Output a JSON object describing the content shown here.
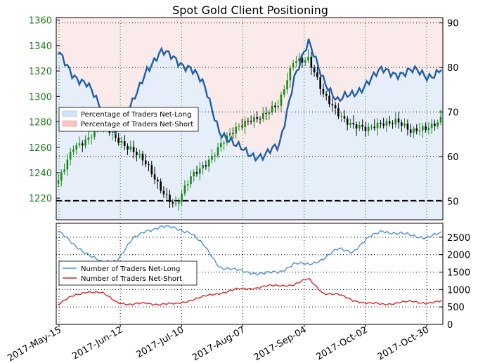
{
  "chart_data": [
    {
      "type": "candlestick+line",
      "title": "Spot Gold Client Positioning",
      "x_ticks": [
        "2017-May-15",
        "2017-Jun-12",
        "2017-Jul-10",
        "2017-Aug-07",
        "2017-Sep-04",
        "2017-Oct-02",
        "2017-Oct-30"
      ],
      "y_left": {
        "ticks": [
          1220,
          1240,
          1260,
          1280,
          1300,
          1320,
          1340,
          1360
        ],
        "range": [
          1203,
          1362
        ],
        "color": "#1a7a1a"
      },
      "y_right": {
        "ticks": [
          50,
          60,
          70,
          80,
          90
        ],
        "range": [
          45.8,
          91.2
        ]
      },
      "reference_line": 1218,
      "legend": {
        "placement": "upper-left",
        "entries": [
          {
            "label": "Percentage of Traders Net-Long",
            "color": "#cfe3f5"
          },
          {
            "label": "Percentage of Traders Net-Short",
            "color": "#f7c6c6"
          }
        ]
      },
      "x": [
        "2017-05-15",
        "2017-05-22",
        "2017-05-29",
        "2017-06-05",
        "2017-06-12",
        "2017-06-19",
        "2017-06-26",
        "2017-07-03",
        "2017-07-10",
        "2017-07-17",
        "2017-07-24",
        "2017-07-31",
        "2017-08-07",
        "2017-08-14",
        "2017-08-21",
        "2017-08-28",
        "2017-09-04",
        "2017-09-11",
        "2017-09-18",
        "2017-09-25",
        "2017-10-02",
        "2017-10-09",
        "2017-10-16",
        "2017-10-23",
        "2017-10-30",
        "2017-11-06",
        "2017-11-10"
      ],
      "gold_close": [
        1232,
        1262,
        1266,
        1278,
        1268,
        1258,
        1245,
        1228,
        1214,
        1235,
        1248,
        1262,
        1272,
        1283,
        1286,
        1292,
        1330,
        1330,
        1300,
        1288,
        1278,
        1272,
        1280,
        1282,
        1270,
        1276,
        1283
      ],
      "pct_net_long": [
        83,
        79,
        76,
        70,
        66,
        71,
        80,
        83,
        82,
        80,
        75,
        66,
        62,
        61,
        60,
        62,
        78,
        85,
        78,
        72,
        74,
        77,
        79,
        79,
        79,
        78,
        80
      ],
      "pct_net_short": [
        17,
        21,
        24,
        30,
        34,
        29,
        20,
        17,
        18,
        20,
        25,
        34,
        38,
        39,
        40,
        38,
        22,
        15,
        22,
        28,
        26,
        23,
        21,
        21,
        21,
        22,
        20
      ]
    },
    {
      "type": "line",
      "y_ticks": [
        0,
        500,
        1000,
        1500,
        2000,
        2500
      ],
      "ylim": [
        0,
        2900
      ],
      "legend": {
        "placement": "upper-left",
        "entries": [
          {
            "label": "Number of Traders Net-Long",
            "color": "#4a90d9"
          },
          {
            "label": "Number of Traders Net-Short",
            "color": "#e02020"
          }
        ]
      },
      "series": [
        {
          "name": "Number of Traders Net-Long",
          "values": [
            2700,
            2300,
            2050,
            1750,
            1850,
            2400,
            2700,
            2800,
            2750,
            2650,
            2200,
            1650,
            1550,
            1500,
            1450,
            1500,
            1750,
            1700,
            1900,
            2150,
            2100,
            2450,
            2700,
            2600,
            2550,
            2500,
            2600
          ]
        },
        {
          "name": "Number of Traders Net-Short",
          "values": [
            580,
            800,
            950,
            900,
            650,
            560,
            610,
            580,
            580,
            700,
            800,
            900,
            1000,
            1020,
            1100,
            1100,
            1150,
            1300,
            900,
            850,
            700,
            600,
            580,
            620,
            650,
            620,
            650
          ]
        }
      ]
    }
  ]
}
